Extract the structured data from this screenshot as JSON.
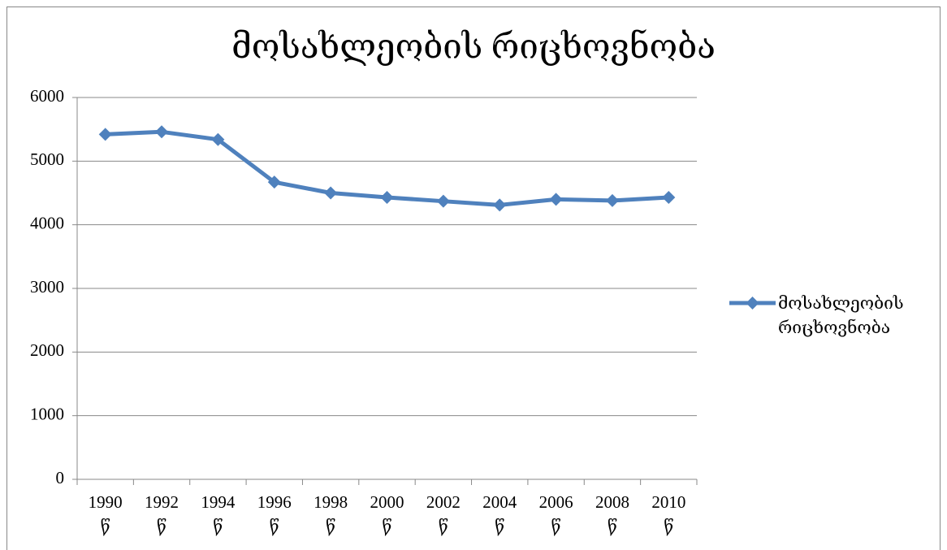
{
  "chart_data": {
    "type": "line",
    "title": "მოსახლეობის რიცხოვნობა",
    "categories": [
      "1990 წ",
      "1992 წ",
      "1994 წ",
      "1996 წ",
      "1998 წ",
      "2000 წ",
      "2002 წ",
      "2004 წ",
      "2006 წ",
      "2008 წ",
      "2010 წ"
    ],
    "series": [
      {
        "name": "მოსახლეობის რიცხოვნობა",
        "color": "#4f81bd",
        "values": [
          5420,
          5460,
          5340,
          4670,
          4500,
          4430,
          4370,
          4310,
          4400,
          4380,
          4430
        ]
      }
    ],
    "ylim": [
      0,
      6000
    ],
    "yticks": [
      0,
      1000,
      2000,
      3000,
      4000,
      5000,
      6000
    ],
    "grid": true,
    "legend": "right"
  }
}
